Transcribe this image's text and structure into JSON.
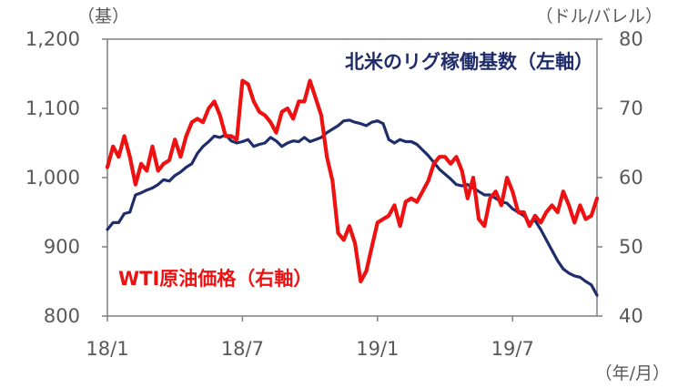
{
  "chart_data": {
    "type": "line",
    "title": "",
    "left_axis": {
      "unit_label": "（基）",
      "ylim": [
        800,
        1200
      ],
      "ticks": [
        800,
        900,
        1000,
        1100,
        1200
      ],
      "tick_labels": [
        "800",
        "900",
        "1,000",
        "1,100",
        "1,200"
      ]
    },
    "right_axis": {
      "unit_label": "（ドル/バレル）",
      "ylim": [
        40,
        80
      ],
      "ticks": [
        40,
        50,
        60,
        70,
        80
      ],
      "tick_labels": [
        "40",
        "50",
        "60",
        "70",
        "80"
      ]
    },
    "x_axis": {
      "unit_label": "（年/月）",
      "range": [
        "2018-01",
        "2019-12"
      ],
      "tick_labels": [
        "18/1",
        "18/7",
        "19/1",
        "19/7"
      ],
      "tick_positions_months": [
        0,
        6,
        12,
        18
      ]
    },
    "colors": {
      "rig": "#1f2d6b",
      "wti": "#ee1111",
      "axis": "#7f7f7f",
      "text": "#595959"
    },
    "series": [
      {
        "name": "北米のリグ稼働基数（左軸）",
        "axis": "left",
        "x": [
          0,
          0.25,
          0.5,
          0.75,
          1,
          1.25,
          1.5,
          1.75,
          2,
          2.25,
          2.5,
          2.75,
          3,
          3.25,
          3.5,
          3.75,
          4,
          4.25,
          4.5,
          4.75,
          5,
          5.25,
          5.5,
          5.75,
          6,
          6.25,
          6.5,
          6.75,
          7,
          7.25,
          7.5,
          7.75,
          8,
          8.25,
          8.5,
          8.75,
          9,
          9.25,
          9.5,
          9.75,
          10,
          10.25,
          10.5,
          10.75,
          11,
          11.25,
          11.5,
          11.75,
          12,
          12.25,
          12.5,
          12.75,
          13,
          13.25,
          13.5,
          13.75,
          14,
          14.25,
          14.5,
          14.75,
          15,
          15.25,
          15.5,
          15.75,
          16,
          16.25,
          16.5,
          16.75,
          17,
          17.25,
          17.5,
          17.75,
          18,
          18.25,
          18.5,
          18.75,
          19,
          19.25,
          19.5,
          19.75,
          20,
          20.25,
          20.5,
          20.75,
          21,
          21.25,
          21.5,
          21.75
        ],
        "values": [
          925,
          935,
          935,
          948,
          950,
          975,
          978,
          982,
          985,
          990,
          997,
          995,
          1003,
          1008,
          1015,
          1020,
          1035,
          1045,
          1052,
          1060,
          1058,
          1062,
          1053,
          1050,
          1052,
          1055,
          1045,
          1048,
          1050,
          1058,
          1053,
          1045,
          1050,
          1053,
          1052,
          1058,
          1052,
          1055,
          1058,
          1065,
          1070,
          1075,
          1082,
          1083,
          1080,
          1078,
          1075,
          1080,
          1082,
          1078,
          1055,
          1050,
          1055,
          1052,
          1052,
          1048,
          1040,
          1032,
          1022,
          1012,
          1005,
          998,
          990,
          988,
          990,
          985,
          980,
          975,
          975,
          970,
          965,
          963,
          955,
          950,
          945,
          935,
          938,
          925,
          910,
          895,
          880,
          868,
          862,
          858,
          856,
          850,
          845,
          830
        ]
      },
      {
        "name": "WTI原油価格（右軸）",
        "axis": "right",
        "x": [
          0,
          0.25,
          0.5,
          0.75,
          1,
          1.25,
          1.5,
          1.75,
          2,
          2.25,
          2.5,
          2.75,
          3,
          3.25,
          3.5,
          3.75,
          4,
          4.25,
          4.5,
          4.75,
          5,
          5.25,
          5.5,
          5.75,
          6,
          6.25,
          6.5,
          6.75,
          7,
          7.25,
          7.5,
          7.75,
          8,
          8.25,
          8.5,
          8.75,
          9,
          9.25,
          9.5,
          9.75,
          10,
          10.25,
          10.5,
          10.75,
          11,
          11.25,
          11.5,
          11.75,
          12,
          12.25,
          12.5,
          12.75,
          13,
          13.25,
          13.5,
          13.75,
          14,
          14.25,
          14.5,
          14.75,
          15,
          15.25,
          15.5,
          15.75,
          16,
          16.25,
          16.5,
          16.75,
          17,
          17.25,
          17.5,
          17.75,
          18,
          18.25,
          18.5,
          18.75,
          19,
          19.25,
          19.5,
          19.75,
          20,
          20.25,
          20.5,
          20.75,
          21,
          21.25,
          21.5,
          21.75
        ],
        "values": [
          61.5,
          64.5,
          63,
          66,
          63,
          59,
          62,
          61,
          64.5,
          61,
          62,
          62.5,
          65.5,
          63,
          66,
          68,
          68.5,
          68,
          70,
          71,
          69,
          66,
          66,
          65.5,
          74,
          73.5,
          71,
          69.5,
          69,
          68,
          66.5,
          69.5,
          70,
          68.5,
          71,
          71,
          74,
          71.5,
          69,
          63,
          59.5,
          52,
          51,
          53,
          50.5,
          45,
          46.5,
          50,
          53.5,
          54,
          54.5,
          56,
          53,
          56.5,
          57,
          56.5,
          58,
          59.5,
          62,
          63,
          63,
          62,
          63,
          61,
          57,
          60,
          54,
          53,
          57,
          58,
          56,
          60,
          58,
          55,
          55,
          53,
          54.5,
          53.5,
          55,
          56,
          55,
          58,
          56,
          53.5,
          56,
          54,
          54.5,
          57
        ]
      }
    ]
  }
}
